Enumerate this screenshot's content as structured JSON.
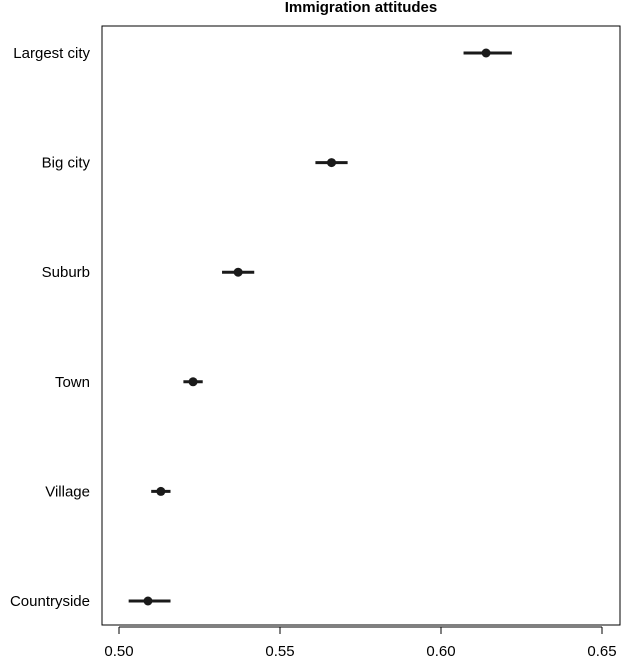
{
  "chart_data": {
    "type": "dot-errorbar",
    "title": "Immigration attitudes",
    "xlabel": "",
    "ylabel": "",
    "categories": [
      "Largest city",
      "Big city",
      "Suburb",
      "Town",
      "Village",
      "Countryside"
    ],
    "estimates": [
      0.614,
      0.566,
      0.537,
      0.523,
      0.513,
      0.509
    ],
    "ci_low": [
      0.607,
      0.561,
      0.532,
      0.52,
      0.51,
      0.503
    ],
    "ci_high": [
      0.622,
      0.571,
      0.542,
      0.526,
      0.516,
      0.516
    ],
    "xlim": [
      0.5,
      0.65
    ],
    "xticks": [
      0.5,
      0.55,
      0.6,
      0.65
    ],
    "xtick_labels": [
      "0.50",
      "0.55",
      "0.60",
      "0.65"
    ],
    "grid": false,
    "color": "#1a1a1a"
  }
}
